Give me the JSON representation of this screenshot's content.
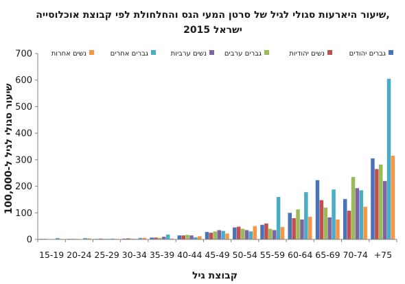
{
  "chart_data": {
    "type": "bar",
    "title": "שיעור היארעות סגולי לגיל של סרטן המעי הגס והחלחולת לפי קבוצת אוכלוסייה,",
    "subtitle": "ישראל 2015",
    "xlabel": "קבוצת גיל",
    "ylabel": "שיעור סגולי לגיל ל-100,000",
    "ylim": [
      0,
      700
    ],
    "yticks": [
      0,
      100,
      200,
      300,
      400,
      500,
      600,
      700
    ],
    "grid": false,
    "legend_position": "top",
    "categories": [
      "15-19",
      "20-24",
      "25-29",
      "30-34",
      "35-39",
      "40-44",
      "45-49",
      "50-54",
      "55-59",
      "60-64",
      "65-69",
      "70-74",
      "75+"
    ],
    "category_labels": [
      "15-19",
      "20-24",
      "25-29",
      "30-34",
      "35-39",
      "40-44",
      "45-49",
      "50-54",
      "55-59",
      "60-64",
      "65-69",
      "70-74",
      "+75"
    ],
    "series": [
      {
        "name": "גברים יהודים",
        "color": "#4a72b8",
        "values": [
          2,
          2,
          2,
          3,
          7,
          15,
          28,
          45,
          55,
          100,
          223,
          152,
          305
        ]
      },
      {
        "name": "נשים יהודיות",
        "color": "#c0504d",
        "values": [
          2,
          2,
          3,
          4,
          7,
          15,
          25,
          48,
          60,
          80,
          148,
          108,
          265
        ]
      },
      {
        "name": "גברים ערבים",
        "color": "#9bbb59",
        "values": [
          1,
          2,
          2,
          3,
          6,
          17,
          30,
          40,
          40,
          113,
          120,
          235,
          282
        ]
      },
      {
        "name": "נשים ערביות",
        "color": "#8064a2",
        "values": [
          1,
          1,
          2,
          2,
          10,
          15,
          35,
          35,
          35,
          75,
          83,
          193,
          220
        ]
      },
      {
        "name": "גברים אחרים",
        "color": "#4bacc6",
        "values": [
          5,
          5,
          3,
          6,
          18,
          8,
          32,
          30,
          160,
          178,
          188,
          185,
          605
        ]
      },
      {
        "name": "נשים אחרות",
        "color": "#f79646",
        "values": [
          2,
          4,
          2,
          6,
          3,
          12,
          22,
          50,
          47,
          85,
          75,
          123,
          315
        ]
      }
    ]
  }
}
